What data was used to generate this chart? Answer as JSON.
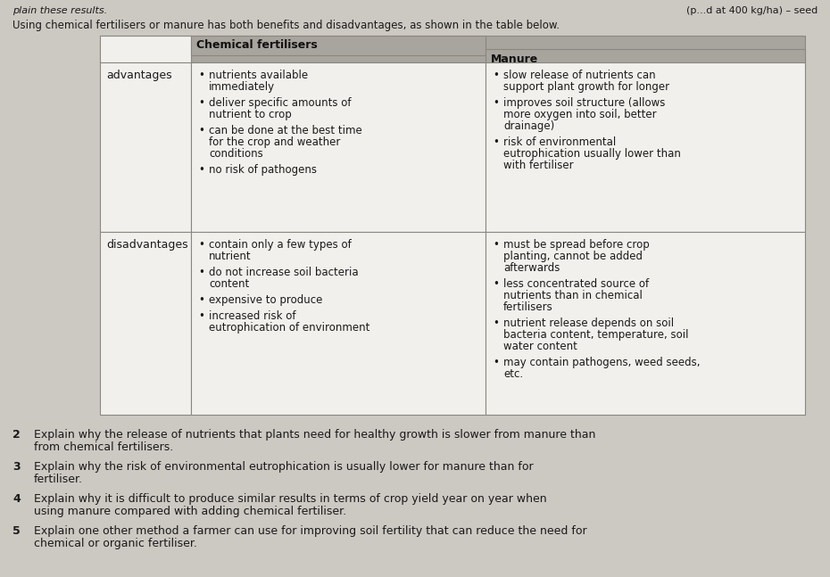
{
  "page_bg": "#ccc8c2",
  "table_bg": "#f2f0ec",
  "header_bg": "#a8a49e",
  "border_color": "#888880",
  "text_color": "#1a1a1a",
  "header_text_color": "#111111",
  "header_top_left": "plain these results.",
  "header_top_right": "(p...d at 400 kg/ha) – seed",
  "intro_text": "Using chemical fertilisers or manure has both benefits and disadvantages, as shown in the table below.",
  "col_headers": [
    "",
    "Chemical fertilisers",
    "Manure"
  ],
  "row_labels": [
    "advantages",
    "disadvantages"
  ],
  "adv_col1": [
    "nutrients available immediately",
    "deliver specific amounts of nutrient to crop",
    "can be done at the best time for the crop and weather conditions",
    "no risk of pathogens"
  ],
  "adv_col2": [
    "slow release of nutrients can support plant growth for longer",
    "improves soil structure (allows more oxygen into soil, better drainage)",
    "risk of environmental eutrophication usually lower than with fertiliser"
  ],
  "dis_col1": [
    "contain only a few types of nutrient",
    "do not increase soil bacteria content",
    "expensive to produce",
    "increased risk of eutrophication of environment"
  ],
  "dis_col2": [
    "must be spread before crop planting, cannot be added afterwards",
    "less concentrated source of nutrients than in chemical fertilisers",
    "nutrient release depends on soil bacteria content, temperature, soil water content",
    "may contain pathogens, weed seeds, etc."
  ],
  "questions": [
    {
      "num": "2",
      "text": "Explain why the release of nutrients that plants need for healthy growth is slower from manure than from chemical fertilisers."
    },
    {
      "num": "3",
      "text": "Explain why the risk of environmental eutrophication is usually lower for manure than for fertiliser."
    },
    {
      "num": "4",
      "text": "Explain why it is difficult to produce similar results in terms of crop yield year on year when using manure compared with adding chemical fertiliser."
    },
    {
      "num": "5",
      "text": "Explain one other method a farmer can use for improving soil fertility that can reduce the need for chemical or organic fertiliser."
    }
  ]
}
